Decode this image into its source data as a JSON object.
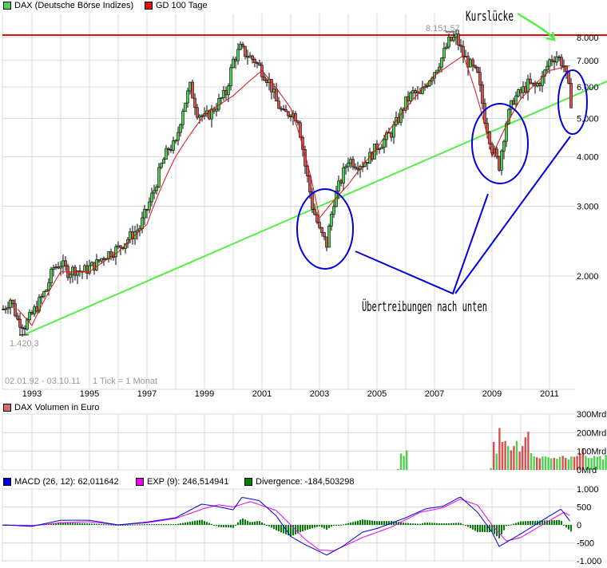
{
  "main_legend": [
    {
      "label": "DAX (Deutsche Börse Indizes)",
      "color": "#4ed14e"
    },
    {
      "label": "GD 100 Tage",
      "color": "#e01010"
    }
  ],
  "volume_legend": {
    "label": "DAX Volumen in Euro",
    "color": "#d86a6a"
  },
  "macd_legend": [
    {
      "label": "MACD (26, 12): 62,011642",
      "color": "#0000e0"
    },
    {
      "label": "EXP (9): 246,514941",
      "color": "#f000f0"
    },
    {
      "label": "Divergence: -184,503298",
      "color": "#008000"
    }
  ],
  "annotations": {
    "gap_label": "Kurslücke",
    "exaggeration_label": "Übertreibungen nach unten",
    "high_label": "8.151,57",
    "low_label": "1.420,3",
    "range_label": "02.01.92 - 03.10.11",
    "tick_label": "1 Tick = 1 Monat"
  },
  "colors": {
    "up": "#4ed14e",
    "down": "#d85050",
    "ma": "#e01010",
    "resistance": "#e01010",
    "trendline": "#55ee44",
    "circle": "#0000dd",
    "grid": "#d8d8d8",
    "macd": "#0000e0",
    "signal": "#f000f0",
    "divergence": "#008000"
  },
  "chart_data": [
    {
      "type": "line",
      "title": "DAX (Deutsche Börse Indizes)",
      "subtitle": "02.01.92 - 03.10.11, 1 Tick = 1 Monat",
      "xlabel": "",
      "ylabel": "",
      "scale": "log",
      "ylim": [
        1300,
        8500
      ],
      "yticks": [
        "2.000",
        "3.000",
        "4.000",
        "5.000",
        "6.000",
        "7.000",
        "8.000"
      ],
      "xticks": [
        "1993",
        "1995",
        "1997",
        "1999",
        "2001",
        "2003",
        "2005",
        "2007",
        "2009",
        "2011"
      ],
      "series": [
        {
          "name": "DAX (Deutsche Börse Indizes)",
          "x": [
            1992.0,
            1992.25,
            1992.5,
            1992.75,
            1993.0,
            1993.25,
            1993.5,
            1993.75,
            1994.0,
            1994.25,
            1994.5,
            1994.75,
            1995.0,
            1995.25,
            1995.5,
            1995.75,
            1996.0,
            1996.25,
            1996.5,
            1996.75,
            1997.0,
            1997.25,
            1997.5,
            1997.75,
            1998.0,
            1998.25,
            1998.5,
            1998.75,
            1999.0,
            1999.25,
            1999.5,
            1999.75,
            2000.0,
            2000.25,
            2000.5,
            2000.75,
            2001.0,
            2001.25,
            2001.5,
            2001.75,
            2002.0,
            2002.25,
            2002.5,
            2002.75,
            2003.0,
            2003.25,
            2003.5,
            2003.75,
            2004.0,
            2004.25,
            2004.5,
            2004.75,
            2005.0,
            2005.25,
            2005.5,
            2005.75,
            2006.0,
            2006.25,
            2006.5,
            2006.75,
            2007.0,
            2007.25,
            2007.5,
            2007.75,
            2008.0,
            2008.25,
            2008.5,
            2008.75,
            2009.0,
            2009.25,
            2009.5,
            2009.75,
            2010.0,
            2010.25,
            2010.5,
            2010.75,
            2011.0,
            2011.25,
            2011.5,
            2011.75
          ],
          "values": [
            1650,
            1750,
            1550,
            1500,
            1600,
            1720,
            1850,
            2100,
            2150,
            2050,
            2080,
            2050,
            2100,
            2150,
            2250,
            2300,
            2350,
            2450,
            2550,
            2650,
            2950,
            3300,
            3800,
            4200,
            4300,
            5300,
            6000,
            5200,
            5000,
            5200,
            5500,
            5800,
            7000,
            7500,
            7200,
            7000,
            6600,
            6200,
            5500,
            5100,
            5200,
            5000,
            3800,
            3000,
            2600,
            2400,
            3100,
            3500,
            3950,
            3850,
            3850,
            4000,
            4250,
            4400,
            4600,
            5000,
            5500,
            5800,
            5700,
            6200,
            6600,
            7100,
            7800,
            8000,
            7200,
            6800,
            6400,
            5000,
            4200,
            3800,
            4900,
            5600,
            5800,
            6100,
            6000,
            6300,
            7000,
            7200,
            6800,
            5500
          ]
        },
        {
          "name": "GD 100 Tage",
          "x": [
            1992.5,
            1993.0,
            1994.0,
            1995.0,
            1996.0,
            1997.0,
            1998.0,
            1999.0,
            2000.0,
            2001.0,
            2002.0,
            2003.0,
            2004.0,
            2005.0,
            2006.0,
            2007.0,
            2008.0,
            2009.0,
            2010.0,
            2011.0,
            2011.75
          ],
          "values": [
            1650,
            1500,
            2050,
            2050,
            2300,
            2700,
            4000,
            5100,
            5700,
            6600,
            5300,
            2800,
            3400,
            4200,
            5300,
            6400,
            7200,
            4000,
            5600,
            6600,
            6800
          ]
        }
      ],
      "annotations": [
        {
          "type": "hline",
          "value": 8151.57,
          "color": "#e01010",
          "label": "8.151,57"
        },
        {
          "type": "trendline",
          "from": [
            1992.7,
            1420
          ],
          "to": [
            2012.0,
            6400
          ],
          "color": "#55ee44"
        },
        {
          "type": "low",
          "value": 1420.3,
          "label": "1.420,3"
        },
        {
          "type": "circle",
          "center_year": 2003.1,
          "label": "Übertreibungen nach unten"
        },
        {
          "type": "circle",
          "center_year": 2009.2,
          "label": "Übertreibungen nach unten"
        },
        {
          "type": "circle",
          "center_year": 2011.6,
          "label": "Übertreibungen nach unten"
        },
        {
          "type": "arrow",
          "label": "Kurslücke",
          "target_year": 2011.3
        }
      ]
    },
    {
      "type": "bar",
      "title": "DAX Volumen in Euro",
      "ylabel": "",
      "ylim": [
        0,
        300
      ],
      "yticks": [
        "0Mrd",
        "100Mrd",
        "200Mrd",
        "300Mrd"
      ],
      "series": [
        {
          "name": "DAX Volumen in Euro (Mrd)",
          "x_start": 2005.7,
          "values": [
            4,
            88,
            75,
            105,
            0,
            0,
            0,
            0,
            0,
            0,
            0,
            0,
            0,
            0,
            0,
            0,
            0,
            10,
            150,
            88,
            225,
            150,
            155,
            128,
            105,
            128,
            155,
            98,
            128,
            175,
            205,
            90,
            72,
            68,
            62,
            72,
            72,
            68,
            62,
            64,
            60,
            70,
            75,
            64,
            55,
            72,
            70,
            75,
            88,
            115,
            75,
            64,
            64,
            75,
            70,
            75,
            55,
            80,
            75,
            98,
            70,
            98,
            75,
            75,
            118,
            92
          ],
          "colors_up_down": "mixed"
        }
      ]
    },
    {
      "type": "line",
      "title": "MACD (26, 12)",
      "ylim": [
        -1000,
        1000
      ],
      "yticks": [
        "1.000",
        "500",
        "0",
        "-500",
        "-1.000"
      ],
      "series": [
        {
          "name": "MACD (26, 12): 62,011642",
          "x": [
            1992.0,
            1993.0,
            1994.0,
            1995.0,
            1996.0,
            1997.0,
            1998.0,
            1998.9,
            1999.4,
            2000.0,
            2000.3,
            2000.9,
            2001.5,
            2002.0,
            2002.5,
            2003.0,
            2003.25,
            2003.8,
            2004.5,
            2005.0,
            2006.0,
            2006.7,
            2007.3,
            2007.9,
            2008.5,
            2009.0,
            2009.25,
            2010.0,
            2010.5,
            2011.0,
            2011.4,
            2011.75
          ],
          "values": [
            0,
            -40,
            130,
            130,
            0,
            80,
            200,
            580,
            520,
            420,
            770,
            680,
            250,
            -320,
            -550,
            -740,
            -840,
            -600,
            -200,
            -100,
            200,
            450,
            520,
            780,
            350,
            -200,
            -600,
            -250,
            0,
            250,
            440,
            62
          ]
        },
        {
          "name": "EXP (9): 246,514941",
          "x": [
            1992.0,
            1993.0,
            1994.0,
            1995.0,
            1996.0,
            1997.0,
            1998.0,
            1999.0,
            1999.5,
            2000.0,
            2000.6,
            2001.5,
            2002.0,
            2002.5,
            2003.0,
            2003.5,
            2004.5,
            2005.5,
            2006.5,
            2007.3,
            2007.9,
            2008.5,
            2009.0,
            2009.5,
            2010.0,
            2011.0,
            2011.5,
            2011.75
          ],
          "values": [
            0,
            -20,
            60,
            90,
            0,
            60,
            180,
            460,
            560,
            500,
            650,
            400,
            0,
            -400,
            -700,
            -720,
            -350,
            -60,
            350,
            480,
            720,
            550,
            0,
            -450,
            -350,
            120,
            350,
            246
          ]
        },
        {
          "name": "Divergence: -184,503298",
          "type": "bar",
          "note": "MACD minus EXP histogram, roughly -400..+250"
        }
      ]
    }
  ]
}
